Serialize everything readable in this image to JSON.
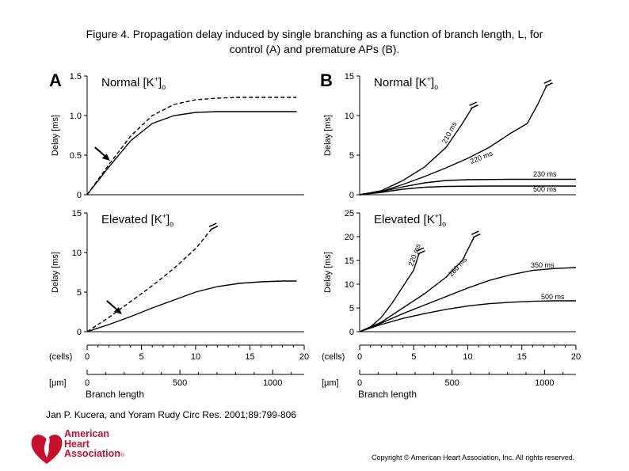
{
  "caption": {
    "line1": "Figure 4. Propagation delay induced by single branching as a function of branch length, L, for",
    "line2": "control (A) and premature APs (B)."
  },
  "citation": "Jan P. Kucera, and Yoram Rudy Circ Res. 2001;89:799-806",
  "copyright": "Copyright © American Heart Association, Inc. All rights reserved.",
  "logo": {
    "lines": [
      "American",
      "Heart",
      "Association"
    ],
    "mark": "®",
    "icon": "heart-torch-icon",
    "color": "#c8102e"
  },
  "axis_common": {
    "x_unit_cells": "(cells)",
    "x_unit_um": "[μm]",
    "x_label": "Branch length",
    "cells_ticks": [
      0,
      5,
      10,
      15,
      20
    ],
    "um_ticks": [
      0,
      500,
      1000
    ],
    "ylabel": "Delay [ms]"
  },
  "chart_data": [
    {
      "type": "line",
      "panel": "A",
      "title": "Normal [K⁺]ₒ",
      "ylabel": "Delay [ms]",
      "xlim": [
        0,
        20
      ],
      "ylim": [
        0,
        1.5
      ],
      "yticks": [
        0,
        0.5,
        1.0,
        1.5
      ],
      "ytick_labels": [
        "0",
        "0.5",
        "1.0",
        "1.5"
      ],
      "series": [
        {
          "style": "dashed",
          "x": [
            0,
            2,
            4,
            6,
            8,
            10,
            12,
            14,
            16,
            18,
            19.3
          ],
          "values": [
            0,
            0.38,
            0.74,
            1.0,
            1.14,
            1.2,
            1.22,
            1.23,
            1.23,
            1.23,
            1.23
          ]
        },
        {
          "style": "solid",
          "x": [
            0,
            2,
            4,
            6,
            8,
            10,
            12,
            14,
            16,
            18,
            19.3
          ],
          "values": [
            0,
            0.35,
            0.68,
            0.9,
            1.0,
            1.04,
            1.05,
            1.05,
            1.05,
            1.05,
            1.05
          ]
        }
      ],
      "annotations": [
        {
          "type": "arrow",
          "x": 2.1,
          "y": 0.43
        }
      ]
    },
    {
      "type": "line",
      "panel": "B",
      "title": "Normal [K⁺]ₒ",
      "ylabel": "Delay [ms]",
      "xlim": [
        0,
        20
      ],
      "ylim": [
        0,
        15
      ],
      "yticks": [
        0,
        5,
        10,
        15
      ],
      "ytick_labels": [
        "0",
        "5",
        "10",
        "15"
      ],
      "series": [
        {
          "name": "210 ms",
          "x": [
            0,
            2,
            4,
            6,
            8,
            9.5,
            10.4
          ],
          "values": [
            0,
            0.5,
            1.8,
            3.5,
            6.0,
            9.0,
            11.0
          ]
        },
        {
          "name": "220 ms",
          "x": [
            0,
            2,
            4,
            6,
            8,
            10,
            12,
            14,
            15.5,
            16.5,
            17.3
          ],
          "values": [
            0,
            0.4,
            1.3,
            2.3,
            3.4,
            4.6,
            6.0,
            7.8,
            9.0,
            11.5,
            13.8
          ]
        },
        {
          "name": "230 ms",
          "x": [
            0,
            2,
            4,
            6,
            8,
            10,
            14,
            20
          ],
          "values": [
            0,
            0.4,
            1.0,
            1.5,
            1.8,
            1.9,
            1.95,
            1.95
          ]
        },
        {
          "name": "500 ms",
          "x": [
            0,
            2,
            4,
            6,
            8,
            12,
            20
          ],
          "values": [
            0,
            0.3,
            0.7,
            0.95,
            1.05,
            1.1,
            1.1
          ]
        }
      ]
    },
    {
      "type": "line",
      "panel": "A",
      "title": "Elevated [K⁺]ₒ",
      "ylabel": "Delay [ms]",
      "xlim": [
        0,
        20
      ],
      "ylim": [
        0,
        15
      ],
      "yticks": [
        0,
        5,
        10,
        15
      ],
      "ytick_labels": [
        "0",
        "5",
        "10",
        "15"
      ],
      "series": [
        {
          "style": "dashed",
          "x": [
            0,
            2,
            4,
            6,
            8,
            10,
            11.5
          ],
          "values": [
            0,
            1.8,
            3.8,
            5.8,
            8.0,
            10.5,
            13.0
          ]
        },
        {
          "style": "solid",
          "x": [
            0,
            2,
            4,
            6,
            8,
            10,
            12,
            14,
            16,
            18,
            19.3
          ],
          "values": [
            0,
            0.9,
            1.9,
            3.0,
            4.0,
            5.0,
            5.7,
            6.1,
            6.3,
            6.4,
            6.4
          ]
        }
      ],
      "annotations": [
        {
          "type": "arrow",
          "x": 3.2,
          "y": 2.2
        }
      ]
    },
    {
      "type": "line",
      "panel": "B",
      "title": "Elevated [K⁺]ₒ",
      "ylabel": "Delay [ms]",
      "xlim": [
        0,
        20
      ],
      "ylim": [
        0,
        25
      ],
      "yticks": [
        0,
        5,
        10,
        15,
        20,
        25
      ],
      "ytick_labels": [
        "0",
        "5",
        "10",
        "15",
        "20",
        "25"
      ],
      "series": [
        {
          "name": "220 ms",
          "x": [
            0,
            1,
            2,
            3,
            4,
            5,
            5.5
          ],
          "values": [
            0,
            1.0,
            3.0,
            6.0,
            9.5,
            13.0,
            16.5
          ]
        },
        {
          "name": "280 ms",
          "x": [
            0,
            2,
            4,
            6,
            8,
            9.5,
            10.6
          ],
          "values": [
            0,
            2.0,
            5.0,
            8.0,
            11.5,
            15.0,
            20.0
          ]
        },
        {
          "name": "350 ms",
          "x": [
            0,
            2,
            4,
            6,
            8,
            10,
            12,
            14,
            16,
            18,
            20
          ],
          "values": [
            0,
            1.8,
            3.8,
            5.6,
            7.4,
            9.2,
            10.8,
            12.0,
            12.9,
            13.3,
            13.5
          ]
        },
        {
          "name": "500 ms",
          "x": [
            0,
            2,
            4,
            6,
            8,
            10,
            12,
            14,
            16,
            18,
            20
          ],
          "values": [
            0,
            1.5,
            2.8,
            3.8,
            4.7,
            5.4,
            5.9,
            6.2,
            6.4,
            6.5,
            6.5
          ]
        }
      ]
    }
  ],
  "panel_letters": [
    "A",
    "B"
  ],
  "icons": [
    "break-mark-icon",
    "arrow-icon"
  ]
}
